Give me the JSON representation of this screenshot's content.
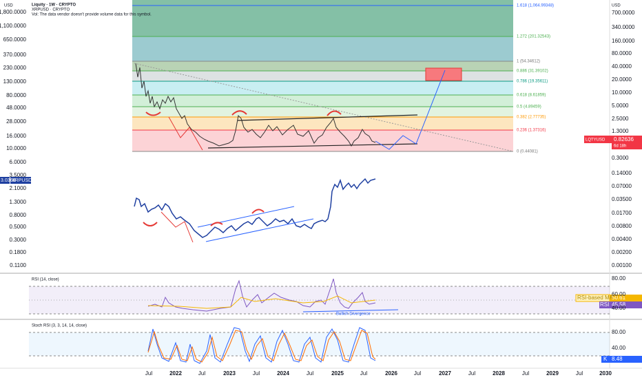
{
  "header": {
    "title": "Liquity · 1W · CRYPTO",
    "symbol2": "XRPUSD · CRYPTO",
    "volume_note": "Vol: The data vendor doesn't provide volume data for this symbol."
  },
  "right_axis": {
    "unit": "USD",
    "labels": [
      "700.0000",
      "340.0000",
      "160.0000",
      "80.0000",
      "40.0000",
      "20.0000",
      "10.0000",
      "5.0000",
      "2.5000",
      "1.3000",
      "0.3000",
      "0.14000",
      "0.07000",
      "0.03500",
      "0.01700",
      "0.00800",
      "0.00400",
      "0.00200",
      "0.00100"
    ]
  },
  "left_axis": {
    "labels": [
      "1,800.0000",
      "1,100.0000",
      "650.0000",
      "370.0000",
      "230.0000",
      "130.0000",
      "80.0000",
      "48.0000",
      "28.0000",
      "16.0000",
      "10.0000",
      "6.0000",
      "3.5000",
      "2.1000",
      "1.3000",
      "0.8000",
      "0.5000",
      "0.3000",
      "0.1800",
      "0.1100"
    ]
  },
  "fib_levels": [
    "1.618 (1,064.99348)",
    "1.272 (201.32543)",
    "1 (54.34612)",
    "0.886 (31.39102)",
    "0.786 (19.35611)",
    "0.618 (8.61859)",
    "0.5 (4.89459)",
    "0.382 (2.77735)",
    "0.236 (1.37316)",
    "0 (0.44081)"
  ],
  "badges": {
    "lqty_symbol": "LQTYUSD",
    "lqty_price": "0.82636",
    "lqty_countdown": "6d 18h",
    "xrp_price": "3.0368",
    "xrp_symbol": "XRPUSD"
  },
  "rsi": {
    "title": "RSI (14, close)",
    "axis": [
      "80.00",
      "60.00",
      "40.00"
    ],
    "ma_label": "RSI-based MA",
    "ma_value": "50.61",
    "rsi_label": "RSI",
    "rsi_value": "45.58",
    "annotation": "Bullish Divergence"
  },
  "stoch": {
    "title": "Stoch RSI (3, 3, 14, 14, close)",
    "axis": [
      "80.00",
      "40.00"
    ],
    "k_label": "K",
    "k_value": "8.48"
  },
  "time_axis": [
    "Jul",
    "2022",
    "Jul",
    "2023",
    "Jul",
    "2024",
    "Jul",
    "2025",
    "Jul",
    "2026",
    "Jul",
    "2027",
    "Jul",
    "2028",
    "Jul",
    "2029",
    "Jul",
    "2030"
  ]
}
